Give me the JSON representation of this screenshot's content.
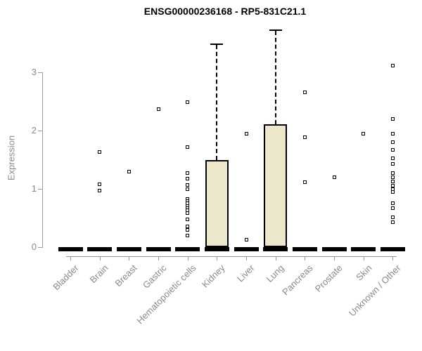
{
  "chart_data": {
    "type": "boxplot",
    "title": "ENSG00000236168 - RP5-831C21.1",
    "ylabel": "Expression",
    "yticks": [
      0,
      1,
      2,
      3
    ],
    "ytick_labels": [
      "0",
      "1",
      "2",
      "3"
    ],
    "ylim": [
      0,
      3.8
    ],
    "grid": false,
    "categories": [
      "Bladder",
      "Brain",
      "Breast",
      "Gastric",
      "Hematopoietic cells",
      "Kidney",
      "Liver",
      "Lung",
      "Pancreas",
      "Prostate",
      "Skin",
      "Unknown / Other"
    ],
    "boxes": [
      {
        "category": "Bladder",
        "median": 0,
        "q1": 0,
        "q3": 0,
        "whisker_low": 0,
        "whisker_high": 0,
        "outliers": []
      },
      {
        "category": "Brain",
        "median": 0,
        "q1": 0,
        "q3": 0,
        "whisker_low": 0,
        "whisker_high": 0,
        "outliers": [
          1.63,
          1.08,
          0.97
        ]
      },
      {
        "category": "Breast",
        "median": 0,
        "q1": 0,
        "q3": 0,
        "whisker_low": 0,
        "whisker_high": 0,
        "outliers": [
          1.3
        ]
      },
      {
        "category": "Gastric",
        "median": 0,
        "q1": 0,
        "q3": 0,
        "whisker_low": 0,
        "whisker_high": 0,
        "outliers": [
          2.37
        ]
      },
      {
        "category": "Hematopoietic cells",
        "median": 0,
        "q1": 0,
        "q3": 0,
        "whisker_low": 0,
        "whisker_high": 0,
        "outliers": [
          2.49,
          1.72,
          1.27,
          1.17,
          1.07,
          1.0,
          0.83,
          0.79,
          0.75,
          0.71,
          0.67,
          0.63,
          0.59,
          0.48,
          0.36,
          0.3,
          0.2
        ]
      },
      {
        "category": "Kidney",
        "median": 0,
        "q1": 0,
        "q3": 1.5,
        "whisker_low": 0,
        "whisker_high": 3.5,
        "outliers": []
      },
      {
        "category": "Liver",
        "median": 0,
        "q1": 0,
        "q3": 0,
        "whisker_low": 0,
        "whisker_high": 0,
        "outliers": [
          1.94,
          0.13
        ]
      },
      {
        "category": "Lung",
        "median": 0,
        "q1": 0,
        "q3": 2.11,
        "whisker_low": 0,
        "whisker_high": 3.73,
        "outliers": []
      },
      {
        "category": "Pancreas",
        "median": 0,
        "q1": 0,
        "q3": 0,
        "whisker_low": 0,
        "whisker_high": 0,
        "outliers": [
          2.66,
          1.88,
          1.12
        ]
      },
      {
        "category": "Prostate",
        "median": 0,
        "q1": 0,
        "q3": 0,
        "whisker_low": 0,
        "whisker_high": 0,
        "outliers": [
          1.2
        ]
      },
      {
        "category": "Skin",
        "median": 0,
        "q1": 0,
        "q3": 0,
        "whisker_low": 0,
        "whisker_high": 0,
        "outliers": [
          1.94
        ]
      },
      {
        "category": "Unknown / Other",
        "median": 0,
        "q1": 0,
        "q3": 0,
        "whisker_low": 0,
        "whisker_high": 0,
        "outliers": [
          3.12,
          2.2,
          1.94,
          1.8,
          1.67,
          1.53,
          1.43,
          1.27,
          1.2,
          1.13,
          1.06,
          1.0,
          0.95,
          0.75,
          0.67,
          0.51,
          0.43
        ]
      }
    ],
    "colors": {
      "box_fill": "#ede7cc",
      "box_border": "#000000",
      "median": "#000000",
      "whisker": "#000000",
      "outlier": "#000000",
      "axis": "#999999",
      "labels": "#8a8a8a",
      "title": "#000000",
      "background": "#ffffff"
    },
    "legend": null
  }
}
